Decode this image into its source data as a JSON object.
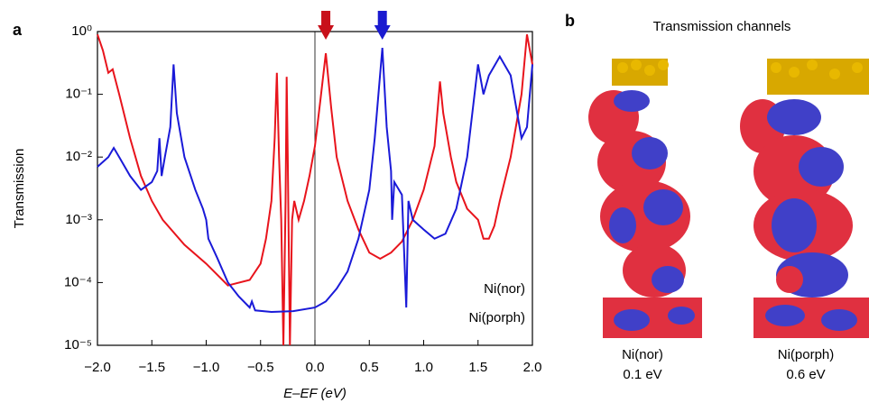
{
  "chart_data": {
    "type": "line",
    "panel_label": "a",
    "y_label": "Transmission",
    "x_label": "E–EF (eV)",
    "log_y": true,
    "legend": "lower right",
    "reference_line_x": 0,
    "xlim": [
      -2,
      2
    ],
    "ylim": [
      1e-05,
      1
    ],
    "xticks": [
      {
        "value": -2,
        "label": "−2.0"
      },
      {
        "value": -1.5,
        "label": "−1.5"
      },
      {
        "value": -1,
        "label": "−1.0"
      },
      {
        "value": -0.5,
        "label": "−0.5"
      },
      {
        "value": 0,
        "label": "0.0"
      },
      {
        "value": 0.5,
        "label": "0.5"
      },
      {
        "value": 1,
        "label": "1.0"
      },
      {
        "value": 1.5,
        "label": "1.5"
      },
      {
        "value": 2,
        "label": "2.0"
      }
    ],
    "yticks": [
      {
        "value": 1e-05,
        "label": "10⁻⁵"
      },
      {
        "value": 0.0001,
        "label": "10⁻⁴"
      },
      {
        "value": 0.001,
        "label": "10⁻³"
      },
      {
        "value": 0.01,
        "label": "10⁻²"
      },
      {
        "value": 0.1,
        "label": "10⁻¹"
      },
      {
        "value": 1,
        "label": "10⁰"
      }
    ],
    "markers": [
      {
        "x": 0.1,
        "color": "#c8101a"
      },
      {
        "x": 0.62,
        "color": "#1a1ad0"
      }
    ],
    "series": [
      {
        "name": "Ni(nor)",
        "color": "#e8141c",
        "x": [
          -2.0,
          -1.95,
          -1.9,
          -1.86,
          -1.8,
          -1.7,
          -1.6,
          -1.5,
          -1.4,
          -1.2,
          -1.0,
          -0.8,
          -0.6,
          -0.5,
          -0.45,
          -0.4,
          -0.37,
          -0.35,
          -0.33,
          -0.31,
          -0.29,
          -0.27,
          -0.26,
          -0.25,
          -0.23,
          -0.21,
          -0.19,
          -0.15,
          -0.1,
          -0.05,
          0.0,
          0.05,
          0.1,
          0.15,
          0.2,
          0.3,
          0.4,
          0.5,
          0.6,
          0.7,
          0.8,
          0.9,
          1.0,
          1.1,
          1.15,
          1.18,
          1.25,
          1.3,
          1.4,
          1.5,
          1.55,
          1.6,
          1.65,
          1.7,
          1.8,
          1.9,
          1.95,
          2.0
        ],
        "values": [
          0.9,
          0.5,
          0.22,
          0.25,
          0.1,
          0.02,
          0.005,
          0.002,
          0.001,
          0.0004,
          0.0002,
          9e-05,
          0.00011,
          0.0002,
          0.0005,
          0.002,
          0.02,
          0.22,
          0.01,
          0.001,
          1e-05,
          0.002,
          0.19,
          0.01,
          1e-05,
          0.001,
          0.002,
          0.001,
          0.002,
          0.005,
          0.015,
          0.08,
          0.45,
          0.06,
          0.01,
          0.002,
          0.0007,
          0.0003,
          0.00024,
          0.0003,
          0.00045,
          0.001,
          0.003,
          0.015,
          0.16,
          0.05,
          0.01,
          0.004,
          0.0015,
          0.001,
          0.0005,
          0.0005,
          0.0008,
          0.002,
          0.01,
          0.1,
          0.9,
          0.3
        ]
      },
      {
        "name": "Ni(porph)",
        "color": "#1a1ad8",
        "x": [
          -2.0,
          -1.9,
          -1.85,
          -1.8,
          -1.7,
          -1.6,
          -1.5,
          -1.45,
          -1.43,
          -1.41,
          -1.38,
          -1.33,
          -1.3,
          -1.27,
          -1.2,
          -1.1,
          -1.03,
          -1.0,
          -0.98,
          -0.9,
          -0.8,
          -0.7,
          -0.6,
          -0.58,
          -0.55,
          -0.4,
          -0.2,
          0.0,
          0.1,
          0.2,
          0.3,
          0.4,
          0.5,
          0.55,
          0.62,
          0.66,
          0.7,
          0.71,
          0.73,
          0.8,
          0.84,
          0.86,
          0.9,
          1.0,
          1.1,
          1.2,
          1.3,
          1.4,
          1.5,
          1.55,
          1.6,
          1.7,
          1.8,
          1.9,
          1.95,
          2.0
        ],
        "values": [
          0.007,
          0.01,
          0.014,
          0.01,
          0.005,
          0.003,
          0.004,
          0.006,
          0.02,
          0.005,
          0.01,
          0.03,
          0.3,
          0.05,
          0.01,
          0.003,
          0.0015,
          0.001,
          0.0005,
          0.00025,
          0.0001,
          6e-05,
          4e-05,
          5e-05,
          3.6e-05,
          3.4e-05,
          3.5e-05,
          4e-05,
          5e-05,
          8e-05,
          0.00015,
          0.0005,
          0.003,
          0.02,
          0.55,
          0.03,
          0.006,
          0.001,
          0.004,
          0.0025,
          4e-05,
          0.002,
          0.001,
          0.0007,
          0.0005,
          0.0006,
          0.0015,
          0.01,
          0.3,
          0.1,
          0.2,
          0.4,
          0.2,
          0.02,
          0.03,
          0.3
        ]
      }
    ]
  },
  "channels": {
    "panel_label": "b",
    "title": "Transmission channels",
    "items": [
      {
        "name": "Ni(nor)",
        "energy": "0.1 eV",
        "color": "#e8141c"
      },
      {
        "name": "Ni(porph)",
        "energy": "0.6 eV",
        "color": "#1a1ad8"
      }
    ]
  }
}
